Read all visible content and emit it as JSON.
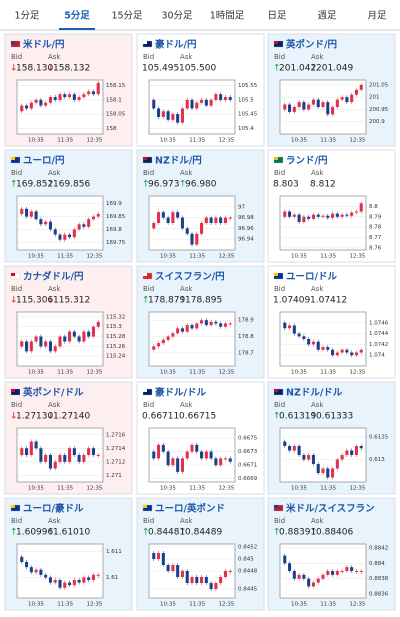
{
  "tabs": [
    "1分足",
    "5分足",
    "15分足",
    "30分足",
    "1時間足",
    "日足",
    "週足",
    "月足"
  ],
  "active_tab": 1,
  "labels": {
    "bid": "Bid",
    "ask": "Ask"
  },
  "time_ticks": [
    "10:35",
    "11:35",
    "12:35"
  ],
  "cards": [
    {
      "pair": "米ドル/円",
      "flag": [
        "#b22234",
        "#3c3b6e"
      ],
      "trend": "↓",
      "bid": "158.130",
      "ask": "158.132",
      "chart": {
        "ylim": [
          157.98,
          158.17
        ],
        "yticks": [
          158,
          158.05,
          158.1,
          158.15
        ],
        "values": [
          158.06,
          158.08,
          158.07,
          158.09,
          158.1,
          158.08,
          158.09,
          158.11,
          158.1,
          158.12,
          158.11,
          158.12,
          158.1,
          158.11,
          158.12,
          158.13,
          158.12,
          158.16
        ]
      }
    },
    {
      "pair": "豪ドル/円",
      "flag": [
        "#012169",
        "#ffffff"
      ],
      "trend": null,
      "bid": "105.495",
      "ask": "105.500",
      "chart": {
        "ylim": [
          105.38,
          105.57
        ],
        "yticks": [
          105.4,
          105.45,
          105.5,
          105.55
        ],
        "values": [
          105.5,
          105.47,
          105.44,
          105.46,
          105.43,
          105.45,
          105.42,
          105.47,
          105.5,
          105.47,
          105.49,
          105.5,
          105.48,
          105.5,
          105.52,
          105.5,
          105.51,
          105.5
        ]
      }
    },
    {
      "pair": "英ポンド/円",
      "flag": [
        "#012169",
        "#c8102e"
      ],
      "trend": "↑",
      "bid": "201.042",
      "ask": "201.049",
      "chart": {
        "ylim": [
          200.85,
          201.07
        ],
        "yticks": [
          200.9,
          200.95,
          201,
          201.05
        ],
        "values": [
          200.95,
          200.97,
          200.94,
          200.96,
          200.98,
          200.95,
          200.97,
          200.99,
          200.96,
          200.98,
          200.93,
          200.96,
          200.99,
          201,
          200.98,
          201.01,
          201.03,
          201.05
        ]
      }
    },
    {
      "pair": "ユーロ/円",
      "flag": [
        "#003399",
        "#ffcc00"
      ],
      "trend": "↑",
      "bid": "169.852",
      "ask": "169.856",
      "chart": {
        "ylim": [
          169.72,
          169.93
        ],
        "yticks": [
          169.75,
          169.8,
          169.85,
          169.9
        ],
        "values": [
          169.86,
          169.88,
          169.85,
          169.87,
          169.84,
          169.82,
          169.83,
          169.8,
          169.78,
          169.76,
          169.78,
          169.77,
          169.8,
          169.82,
          169.81,
          169.84,
          169.85,
          169.86
        ]
      }
    },
    {
      "pair": "NZドル/円",
      "flag": [
        "#012169",
        "#c8102e"
      ],
      "trend": "↑",
      "bid": "96.973",
      "ask": "96.980",
      "chart": {
        "ylim": [
          96.92,
          97.02
        ],
        "yticks": [
          96.94,
          96.96,
          96.98,
          97
        ],
        "values": [
          96.96,
          96.97,
          96.99,
          96.98,
          96.97,
          96.99,
          96.98,
          96.96,
          96.95,
          96.93,
          96.95,
          96.97,
          96.98,
          96.97,
          96.98,
          96.97,
          96.98,
          96.98
        ]
      }
    },
    {
      "pair": "ランド/円",
      "flag": [
        "#007a4d",
        "#ffb612"
      ],
      "trend": null,
      "bid": "8.803",
      "ask": "8.812",
      "chart": {
        "ylim": [
          8.758,
          8.81
        ],
        "yticks": [
          8.76,
          8.77,
          8.78,
          8.79,
          8.8
        ],
        "values": [
          8.79,
          8.795,
          8.79,
          8.792,
          8.785,
          8.79,
          8.788,
          8.792,
          8.79,
          8.791,
          8.789,
          8.793,
          8.79,
          8.792,
          8.791,
          8.794,
          8.795,
          8.803
        ]
      }
    },
    {
      "pair": "カナダドル/円",
      "flag": [
        "#ffffff",
        "#d80621"
      ],
      "trend": "↓",
      "bid": "115.306",
      "ask": "115.312",
      "chart": {
        "ylim": [
          115.22,
          115.33
        ],
        "yticks": [
          115.24,
          115.26,
          115.28,
          115.3,
          115.32
        ],
        "values": [
          115.26,
          115.27,
          115.25,
          115.27,
          115.28,
          115.26,
          115.27,
          115.25,
          115.26,
          115.28,
          115.27,
          115.29,
          115.28,
          115.27,
          115.29,
          115.28,
          115.3,
          115.31
        ]
      }
    },
    {
      "pair": "スイスフラン/円",
      "flag": [
        "#d52b1e",
        "#ffffff"
      ],
      "trend": "↑",
      "bid": "178.879",
      "ask": "178.895",
      "chart": {
        "ylim": [
          178.62,
          178.95
        ],
        "yticks": [
          178.7,
          178.8,
          178.9
        ],
        "values": [
          178.72,
          178.74,
          178.76,
          178.78,
          178.8,
          178.82,
          178.85,
          178.83,
          178.87,
          178.85,
          178.88,
          178.9,
          178.87,
          178.89,
          178.88,
          178.86,
          178.88,
          178.88
        ]
      }
    },
    {
      "pair": "ユーロ/ドル",
      "flag": [
        "#003399",
        "#ffcc00"
      ],
      "trend": null,
      "bid": "1.07409",
      "ask": "1.07412",
      "chart": {
        "ylim": [
          1.0738,
          1.0748
        ],
        "yticks": [
          1.074,
          1.0742,
          1.0744,
          1.0746
        ],
        "values": [
          1.0746,
          1.0745,
          1.07455,
          1.0744,
          1.07435,
          1.0743,
          1.0742,
          1.07425,
          1.0741,
          1.07415,
          1.0741,
          1.074,
          1.07405,
          1.0741,
          1.07405,
          1.074,
          1.07405,
          1.0741
        ]
      }
    },
    {
      "pair": "英ポンド/ドル",
      "flag": [
        "#012169",
        "#c8102e"
      ],
      "trend": "↓",
      "bid": "1.27130",
      "ask": "1.27140",
      "chart": {
        "ylim": [
          1.2709,
          1.2717
        ],
        "yticks": [
          1.271,
          1.2712,
          1.2714,
          1.2716
        ],
        "values": [
          1.2713,
          1.2714,
          1.2713,
          1.2715,
          1.2714,
          1.2712,
          1.2713,
          1.2711,
          1.2712,
          1.2713,
          1.2712,
          1.2714,
          1.2713,
          1.2712,
          1.2713,
          1.2714,
          1.2713,
          1.2713
        ]
      }
    },
    {
      "pair": "豪ドル/ドル",
      "flag": [
        "#012169",
        "#ffffff"
      ],
      "trend": null,
      "bid": "0.66711",
      "ask": "0.66715",
      "chart": {
        "ylim": [
          0.66685,
          0.66765
        ],
        "yticks": [
          0.6669,
          0.6671,
          0.6673,
          0.6675
        ],
        "values": [
          0.6673,
          0.6672,
          0.6674,
          0.6673,
          0.6671,
          0.6672,
          0.667,
          0.6672,
          0.6673,
          0.6674,
          0.6673,
          0.6672,
          0.6673,
          0.6672,
          0.6671,
          0.6672,
          0.6672,
          0.66715
        ]
      }
    },
    {
      "pair": "NZドル/ドル",
      "flag": [
        "#012169",
        "#c8102e"
      ],
      "trend": "↑",
      "bid": "0.61319",
      "ask": "0.61333",
      "chart": {
        "ylim": [
          0.6125,
          0.6137
        ],
        "yticks": [
          0.613,
          0.6135
        ],
        "values": [
          0.6134,
          0.6133,
          0.6132,
          0.6133,
          0.6131,
          0.613,
          0.6131,
          0.6129,
          0.6127,
          0.6128,
          0.6126,
          0.6128,
          0.613,
          0.6131,
          0.6132,
          0.6131,
          0.6133,
          0.61325
        ]
      }
    },
    {
      "pair": "ユーロ/豪ドル",
      "flag": [
        "#003399",
        "#ffcc00"
      ],
      "trend": "↑",
      "bid": "1.60996",
      "ask": "1.61010",
      "chart": {
        "ylim": [
          1.6092,
          1.6113
        ],
        "yticks": [
          1.61,
          1.611
        ],
        "values": [
          1.6108,
          1.6106,
          1.6104,
          1.6102,
          1.6103,
          1.6101,
          1.61,
          1.6098,
          1.6099,
          1.6096,
          1.6098,
          1.6097,
          1.6099,
          1.6098,
          1.61,
          1.6099,
          1.6101,
          1.6101
        ]
      }
    },
    {
      "pair": "ユーロ/英ポンド",
      "flag": [
        "#003399",
        "#ffcc00"
      ],
      "trend": "↑",
      "bid": "0.84481",
      "ask": "0.84489",
      "chart": {
        "ylim": [
          0.84435,
          0.84525
        ],
        "yticks": [
          0.8445,
          0.8448,
          0.845,
          0.8452
        ],
        "values": [
          0.8451,
          0.845,
          0.8451,
          0.8449,
          0.8448,
          0.8449,
          0.8447,
          0.8448,
          0.8446,
          0.8447,
          0.8446,
          0.8447,
          0.8446,
          0.8445,
          0.8446,
          0.8447,
          0.8448,
          0.8448
        ]
      }
    },
    {
      "pair": "米ドル/スイスフラン",
      "flag": [
        "#b22234",
        "#3c3b6e"
      ],
      "trend": "↑",
      "bid": "0.88391",
      "ask": "0.88406",
      "chart": {
        "ylim": [
          0.88355,
          0.88425
        ],
        "yticks": [
          0.8836,
          0.8838,
          0.884,
          0.8842
        ],
        "values": [
          0.8841,
          0.884,
          0.8839,
          0.8838,
          0.88385,
          0.8838,
          0.8837,
          0.88375,
          0.8838,
          0.88385,
          0.8839,
          0.88385,
          0.8839,
          0.8839,
          0.88395,
          0.8839,
          0.8839,
          0.8839
        ]
      }
    }
  ]
}
